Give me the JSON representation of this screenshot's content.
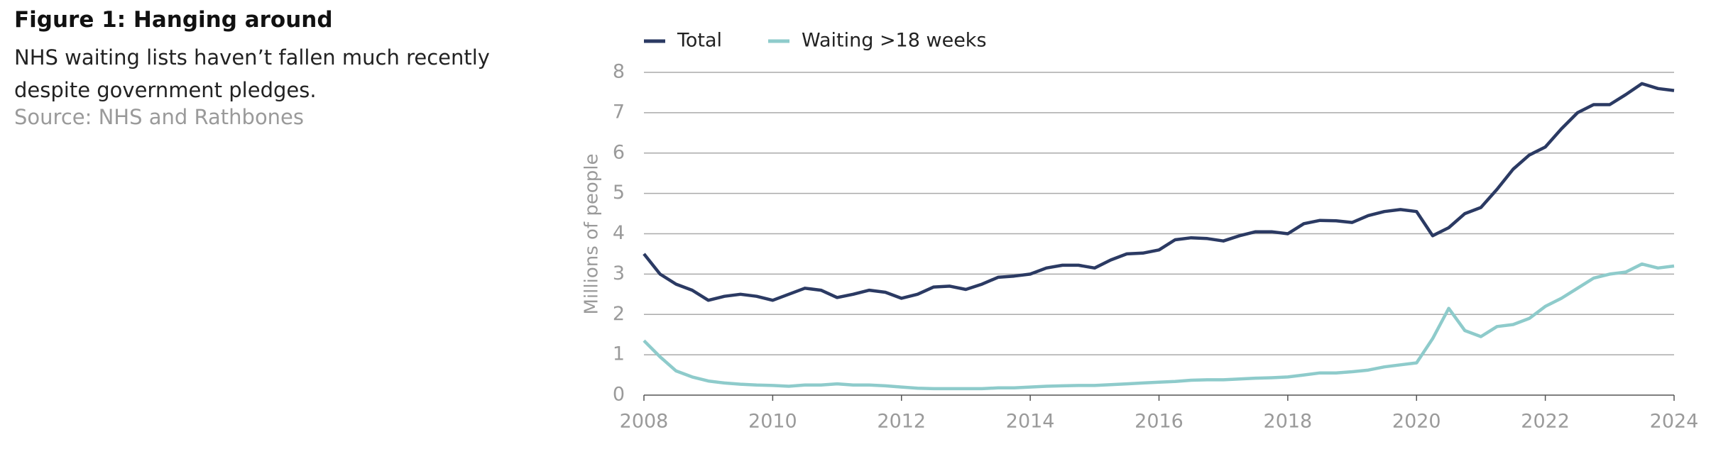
{
  "chart_data": {
    "type": "line",
    "title": "Figure 1: Hanging around",
    "subtitle": "NHS waiting lists haven’t fallen much recently despite government pledges.",
    "source": "Source: NHS and Rathbones",
    "y_label": "Millions of people",
    "x": [
      2008,
      2008.25,
      2008.5,
      2008.75,
      2009,
      2009.25,
      2009.5,
      2009.75,
      2010,
      2010.25,
      2010.5,
      2010.75,
      2011,
      2011.25,
      2011.5,
      2011.75,
      2012,
      2012.25,
      2012.5,
      2012.75,
      2013,
      2013.25,
      2013.5,
      2013.75,
      2014,
      2014.25,
      2014.5,
      2014.75,
      2015,
      2015.25,
      2015.5,
      2015.75,
      2016,
      2016.25,
      2016.5,
      2016.75,
      2017,
      2017.25,
      2017.5,
      2017.75,
      2018,
      2018.25,
      2018.5,
      2018.75,
      2019,
      2019.25,
      2019.5,
      2019.75,
      2020,
      2020.25,
      2020.5,
      2020.75,
      2021,
      2021.25,
      2021.5,
      2021.75,
      2022,
      2022.25,
      2022.5,
      2022.75,
      2023,
      2023.25,
      2023.5,
      2023.75,
      2024
    ],
    "series": [
      {
        "name": "Total",
        "color": "#2b3a63",
        "values": [
          3.5,
          3.0,
          2.75,
          2.6,
          2.35,
          2.45,
          2.5,
          2.45,
          2.35,
          2.5,
          2.65,
          2.6,
          2.42,
          2.5,
          2.6,
          2.55,
          2.4,
          2.5,
          2.68,
          2.7,
          2.62,
          2.75,
          2.92,
          2.95,
          3.0,
          3.15,
          3.22,
          3.22,
          3.15,
          3.35,
          3.5,
          3.52,
          3.6,
          3.85,
          3.9,
          3.88,
          3.82,
          3.95,
          4.05,
          4.05,
          4.0,
          4.25,
          4.33,
          4.32,
          4.28,
          4.45,
          4.55,
          4.6,
          4.55,
          3.95,
          4.15,
          4.5,
          4.65,
          5.1,
          5.6,
          5.95,
          6.15,
          6.6,
          7.0,
          7.2,
          7.2,
          7.45,
          7.72,
          7.6,
          7.55
        ]
      },
      {
        "name": "Waiting >18 weeks",
        "color": "#8ecbcb",
        "values": [
          1.35,
          0.95,
          0.6,
          0.45,
          0.35,
          0.3,
          0.27,
          0.25,
          0.24,
          0.22,
          0.25,
          0.25,
          0.28,
          0.25,
          0.25,
          0.23,
          0.2,
          0.17,
          0.16,
          0.16,
          0.16,
          0.16,
          0.18,
          0.18,
          0.2,
          0.22,
          0.23,
          0.24,
          0.24,
          0.26,
          0.28,
          0.3,
          0.32,
          0.34,
          0.37,
          0.38,
          0.38,
          0.4,
          0.42,
          0.43,
          0.45,
          0.5,
          0.55,
          0.55,
          0.58,
          0.62,
          0.7,
          0.75,
          0.8,
          1.4,
          2.15,
          1.6,
          1.45,
          1.7,
          1.75,
          1.9,
          2.2,
          2.4,
          2.65,
          2.9,
          3.0,
          3.05,
          3.25,
          3.15,
          3.2
        ]
      }
    ],
    "xlim": [
      2008,
      2024
    ],
    "xticks": [
      2008,
      2010,
      2012,
      2014,
      2016,
      2018,
      2020,
      2022,
      2024
    ],
    "ylim": [
      0,
      8
    ],
    "yticks": [
      0,
      1,
      2,
      3,
      4,
      5,
      6,
      7,
      8
    ],
    "grid": true,
    "legend": "top"
  }
}
